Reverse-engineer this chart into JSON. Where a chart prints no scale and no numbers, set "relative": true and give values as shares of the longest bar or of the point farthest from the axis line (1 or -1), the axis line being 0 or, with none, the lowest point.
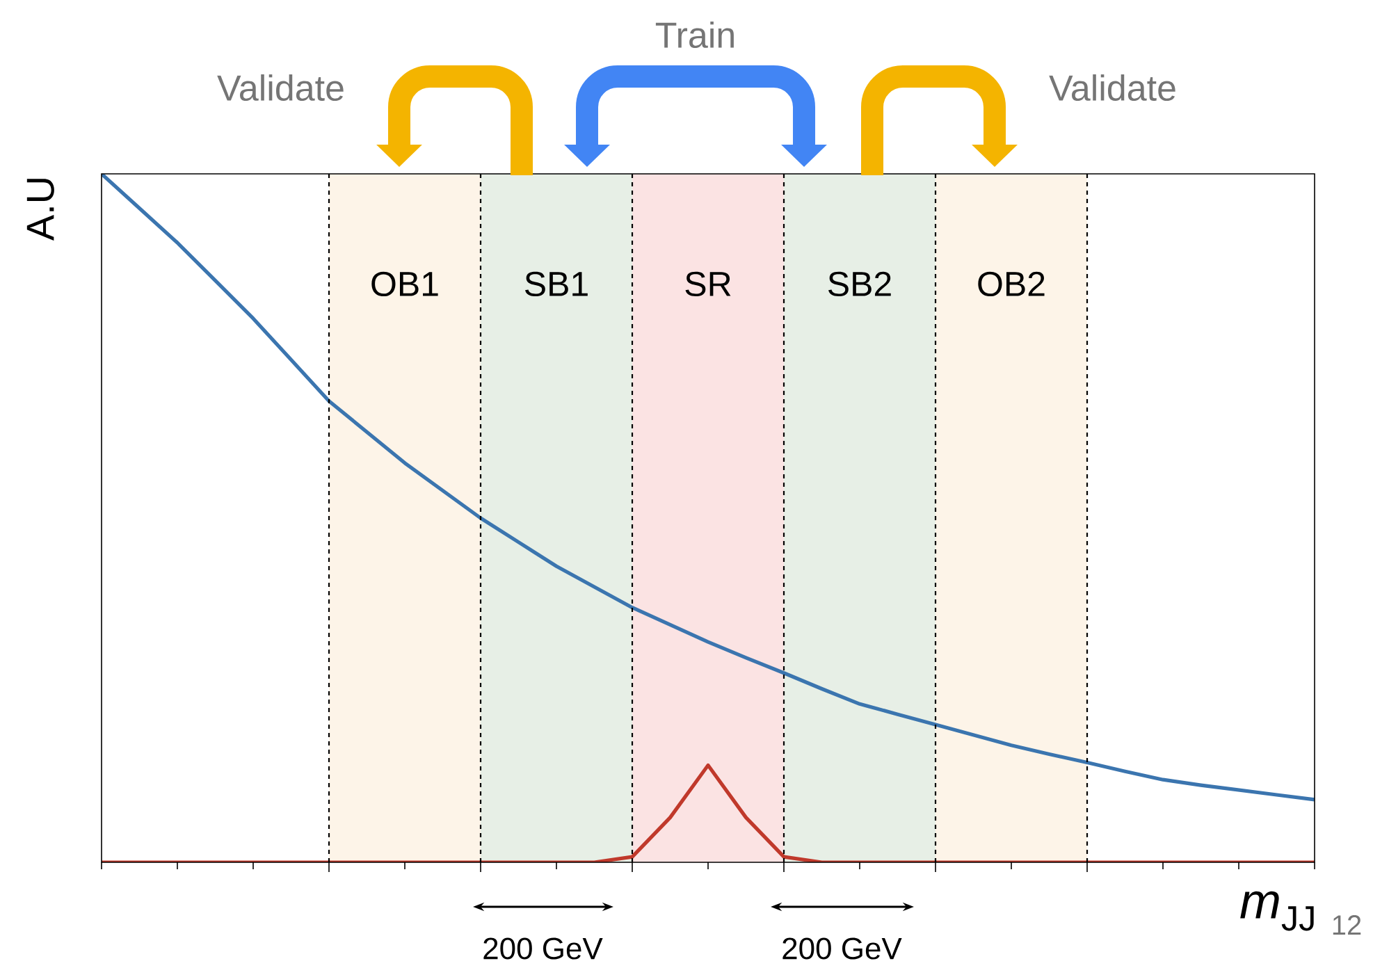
{
  "chart_data": {
    "type": "line",
    "relative": true,
    "grid": "x",
    "xlabel": "*m*$_{JJ}$",
    "ylabel": "A.U",
    "categories": [
      null,
      null,
      null,
      null,
      null,
      null,
      null,
      null,
      null,
      null,
      null,
      null,
      null,
      null,
      null,
      null,
      null,
      null,
      null,
      null,
      null,
      null,
      null,
      null,
      null,
      null,
      null,
      null,
      null,
      null,
      null,
      null,
      null
    ],
    "series": [
      {
        "color": "#3b75af",
        "values": [
          1.0,
          0.95,
          0.9,
          0.845,
          0.79,
          0.73,
          0.67,
          0.625,
          0.58,
          0.54,
          0.5,
          0.465,
          0.43,
          0.4,
          0.37,
          0.345,
          0.32,
          0.297,
          0.275,
          0.252,
          0.23,
          0.215,
          0.2,
          0.185,
          0.17,
          0.157,
          0.145,
          0.132,
          0.12,
          0.112,
          0.105,
          0.098,
          0.091
        ]
      },
      {
        "color": "#c0392b",
        "values": [
          0,
          0,
          0,
          0,
          0,
          0,
          0,
          0,
          0,
          0,
          0,
          0,
          0,
          0,
          0.008,
          0.065,
          0.141,
          0.065,
          0.008,
          0,
          0,
          0,
          0,
          0,
          0,
          0,
          0,
          0,
          0,
          0,
          0,
          0,
          0
        ]
      }
    ],
    "annotations": [
      "Train",
      "Validate",
      "Validate",
      "200 GeV",
      "200 GeV",
      "12",
      "OB1",
      "SB1",
      "SR",
      "SB2",
      "OB2"
    ]
  }
}
